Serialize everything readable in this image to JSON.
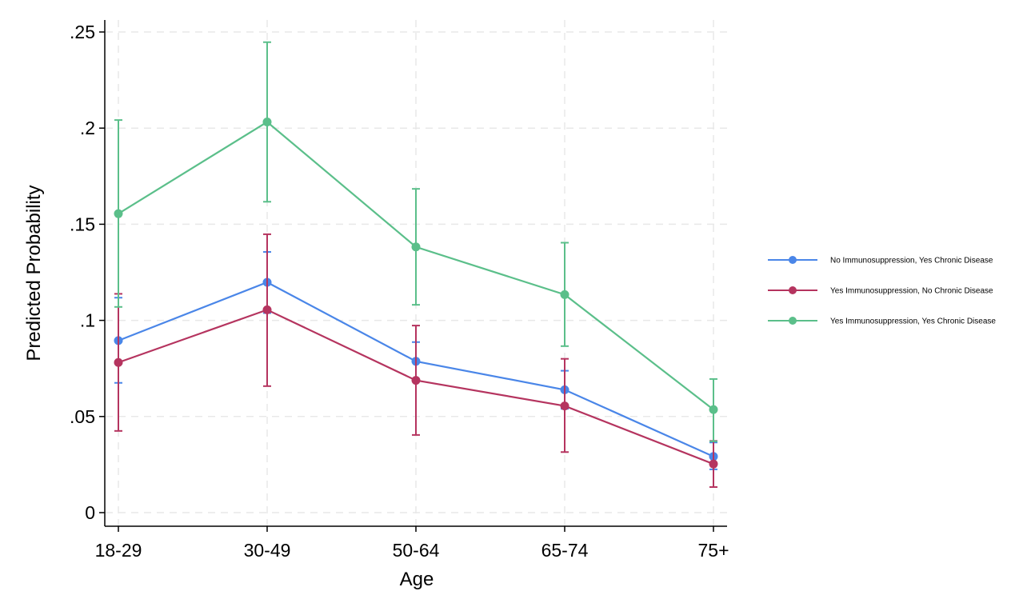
{
  "chart_data": {
    "type": "line",
    "title": "",
    "xlabel": "Age",
    "ylabel": "Predicted Probability",
    "categories": [
      "18-29",
      "30-49",
      "50-64",
      "65-74",
      "75+"
    ],
    "ylim": [
      0,
      0.25
    ],
    "yticks": [
      0,
      0.05,
      0.1,
      0.15,
      0.2,
      0.25
    ],
    "ytick_labels": [
      "0",
      ".05",
      ".1",
      ".15",
      ".2",
      ".25"
    ],
    "grid": true,
    "legend_position": "right",
    "error_bars": "confidence intervals",
    "series": [
      {
        "name": "No Immunosuppression, Yes Chronic Disease",
        "color": "#4a86e8",
        "values": [
          0.0895,
          0.1198,
          0.0787,
          0.0639,
          0.0292
        ],
        "lower": [
          0.0675,
          0.1038,
          0.069,
          0.054,
          0.0225
        ],
        "upper": [
          0.1118,
          0.1356,
          0.0887,
          0.0738,
          0.0365
        ]
      },
      {
        "name": "Yes Immunosuppression, No Chronic Disease",
        "color": "#b5345f",
        "values": [
          0.0781,
          0.1055,
          0.0688,
          0.0555,
          0.0253
        ],
        "lower": [
          0.0425,
          0.0658,
          0.0404,
          0.0315,
          0.0133
        ],
        "upper": [
          0.1138,
          0.1448,
          0.0973,
          0.08,
          0.0373
        ]
      },
      {
        "name": "Yes Immunosuppression, Yes Chronic Disease",
        "color": "#5bbf8a",
        "values": [
          0.1555,
          0.2032,
          0.1382,
          0.1134,
          0.0536
        ],
        "lower": [
          0.107,
          0.1617,
          0.1081,
          0.0866,
          0.0371
        ],
        "upper": [
          0.2042,
          0.2447,
          0.1684,
          0.1404,
          0.0695
        ]
      }
    ]
  }
}
